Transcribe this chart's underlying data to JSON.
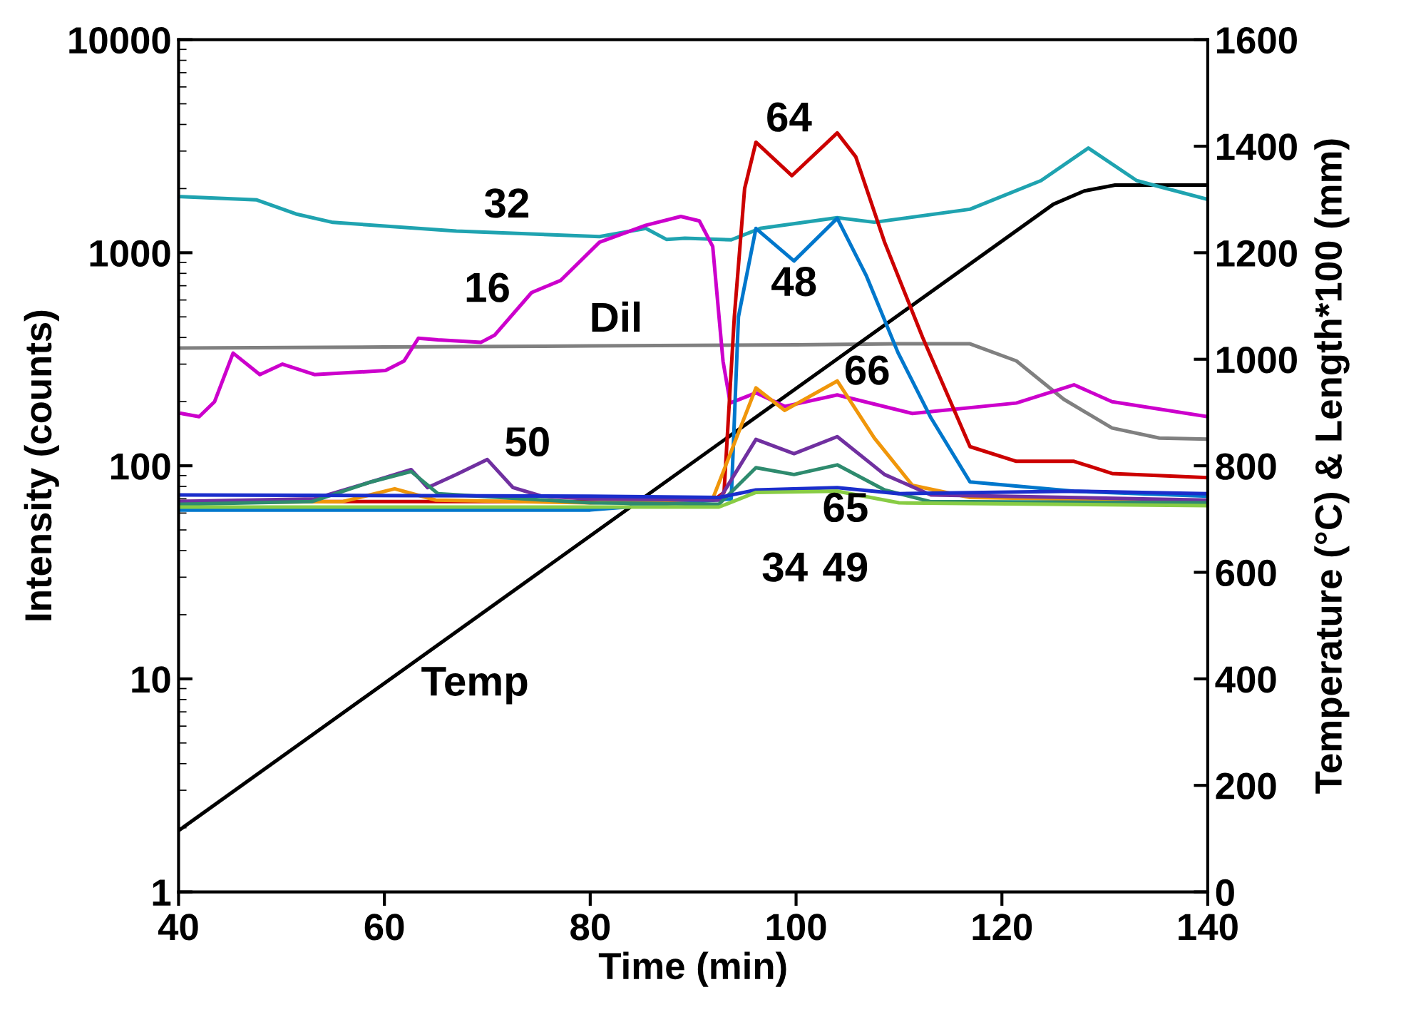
{
  "chart_data": {
    "type": "line",
    "xlabel": "Time (min)",
    "ylabel": "Intensity (counts)",
    "y2label": "Temperature (°C) & Length*100 (mm)",
    "xlim": [
      40,
      140
    ],
    "xticks": [
      40,
      60,
      80,
      100,
      120,
      140
    ],
    "ylim": [
      1,
      10000
    ],
    "yticks": [
      1,
      10,
      100,
      1000,
      10000
    ],
    "y2lim": [
      0,
      1600
    ],
    "y2ticks": [
      0,
      200,
      400,
      600,
      800,
      1000,
      1200,
      1400,
      1600
    ],
    "log": "y",
    "grid": false,
    "marker": "none",
    "line_style": "solid",
    "series": [
      {
        "name": "32",
        "color": "#1fa3b0",
        "x": [
          40.3,
          47.6,
          51.4,
          55,
          67,
          80.9,
          85.4,
          87.4,
          89.2,
          93.7,
          96.5,
          104,
          107.6,
          116.9,
          123.8,
          128.4,
          133.1,
          140
        ],
        "values": [
          1832,
          1770,
          1521,
          1388,
          1264,
          1190,
          1300,
          1155,
          1170,
          1150,
          1300,
          1460,
          1390,
          1600,
          2180,
          3100,
          2180,
          1780
        ]
      },
      {
        "name": "16",
        "color": "#cc00cc",
        "x": [
          40.3,
          42,
          43.5,
          45.3,
          47.9,
          50.1,
          53.2,
          60.1,
          61.9,
          63.3,
          65.2,
          69.4,
          70.7,
          74.3,
          77.1,
          80.9,
          85.4,
          88.8,
          90.6,
          91.9,
          92.9,
          93.6,
          96.1,
          98.9,
          104,
          111.3,
          121.4,
          127,
          130.7,
          140
        ],
        "values": [
          176,
          170,
          200,
          338,
          268,
          300,
          268,
          280,
          310,
          397,
          390,
          380,
          410,
          650,
          740,
          1120,
          1345,
          1480,
          1410,
          1070,
          310,
          197,
          220,
          190,
          215,
          176,
          197,
          240,
          200,
          170
        ]
      },
      {
        "name": "Dil",
        "color": "#808080",
        "axis": "y2",
        "x": [
          40,
          60,
          80,
          100,
          110,
          116.9,
          121.4,
          126,
          130.7,
          135.3,
          140
        ],
        "values": [
          1021,
          1023,
          1025,
          1027,
          1029,
          1029,
          997,
          925,
          871,
          852,
          850
        ]
      },
      {
        "name": "Temp",
        "color": "#000000",
        "axis": "y2",
        "x": [
          40,
          125,
          128,
          131,
          140
        ],
        "values": [
          115,
          1291,
          1316,
          1327,
          1327
        ]
      },
      {
        "name": "64",
        "color": "#cc0000",
        "x": [
          40,
          60,
          80,
          92,
          93,
          94,
          95,
          96.1,
          99.6,
          104,
          105.8,
          108.6,
          112.3,
          116.9,
          121.4,
          127,
          130.7,
          140
        ],
        "values": [
          68,
          68,
          68,
          69,
          75,
          500,
          2000,
          3300,
          2300,
          3650,
          2820,
          1120,
          400,
          123,
          105,
          105,
          92,
          88
        ]
      },
      {
        "name": "48",
        "color": "#0077cc",
        "x": [
          40,
          60,
          80,
          93.7,
          94.4,
          96.1,
          99.8,
          104,
          106.8,
          109.9,
          113.1,
          116.9,
          127,
          140
        ],
        "values": [
          62,
          62,
          62,
          70,
          500,
          1300,
          915,
          1450,
          785,
          340,
          168,
          84,
          76,
          72
        ]
      },
      {
        "name": "66",
        "color": "#f0960a",
        "x": [
          40,
          56,
          61,
          65,
          80,
          91.9,
          96.1,
          98.9,
          104,
          107.6,
          111.3,
          116.9,
          140
        ],
        "values": [
          67,
          68,
          78,
          69,
          67,
          70,
          232,
          182,
          250,
          135,
          81,
          71,
          68
        ]
      },
      {
        "name": "50",
        "color": "#7030a0",
        "x": [
          40,
          53.2,
          58.7,
          62.6,
          64.2,
          67,
          70,
          72.5,
          75.3,
          80,
          92.5,
          96.1,
          99.8,
          104,
          108.6,
          113.1,
          140
        ],
        "values": [
          68,
          70,
          84,
          96,
          79,
          91,
          107,
          79,
          72,
          70,
          69,
          133,
          114,
          137,
          91,
          73,
          69
        ]
      },
      {
        "name": "65",
        "color": "#2e8b6e",
        "x": [
          40,
          53,
          58.7,
          62.6,
          65.2,
          80,
          92.5,
          96.1,
          99.8,
          104,
          108.6,
          113,
          140
        ],
        "values": [
          66,
          68,
          84,
          94,
          74,
          67,
          66,
          98,
          91,
          101,
          77,
          68,
          67
        ]
      },
      {
        "name": "34",
        "color": "#1a2ecc",
        "x": [
          40,
          80,
          92.5,
          96.1,
          104,
          110,
          127,
          140
        ],
        "values": [
          73,
          72,
          71,
          77,
          79,
          74,
          76,
          74
        ]
      },
      {
        "name": "49",
        "color": "#88cc44",
        "x": [
          40,
          80,
          92.5,
          96.1,
          104,
          110,
          140
        ],
        "values": [
          64,
          64,
          64,
          75,
          76,
          67,
          65
        ]
      }
    ]
  }
}
